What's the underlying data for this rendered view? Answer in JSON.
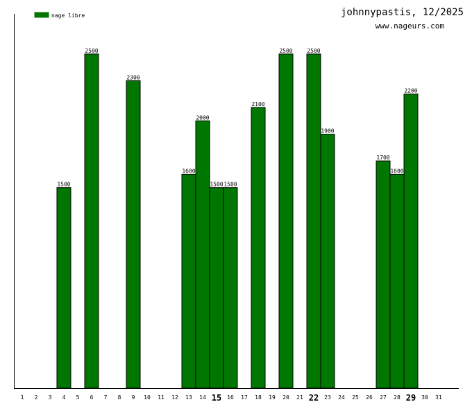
{
  "header": {
    "title": "johnnypastis, 12/2025",
    "subtitle": "www.nageurs.com"
  },
  "colors": {
    "bar": "#007700",
    "bar_stroke": "#000000",
    "axis": "#000000"
  },
  "chart_data": {
    "type": "bar",
    "categories": [
      "1",
      "2",
      "3",
      "4",
      "5",
      "6",
      "7",
      "8",
      "9",
      "10",
      "11",
      "12",
      "13",
      "14",
      "15",
      "16",
      "17",
      "18",
      "19",
      "20",
      "21",
      "22",
      "23",
      "24",
      "25",
      "26",
      "27",
      "28",
      "29",
      "30",
      "31"
    ],
    "bold_categories": [
      "15",
      "22",
      "29"
    ],
    "series": [
      {
        "name": "nage libre",
        "values": [
          0,
          0,
          0,
          1500,
          0,
          2500,
          0,
          0,
          2300,
          0,
          0,
          0,
          1600,
          2000,
          1500,
          1500,
          0,
          2100,
          0,
          2500,
          0,
          2500,
          1900,
          0,
          0,
          0,
          1700,
          1600,
          2200,
          0,
          0
        ]
      }
    ],
    "ylim": [
      0,
      2800
    ],
    "legend": "top-left",
    "grid": false,
    "xlabel": "",
    "ylabel": ""
  }
}
